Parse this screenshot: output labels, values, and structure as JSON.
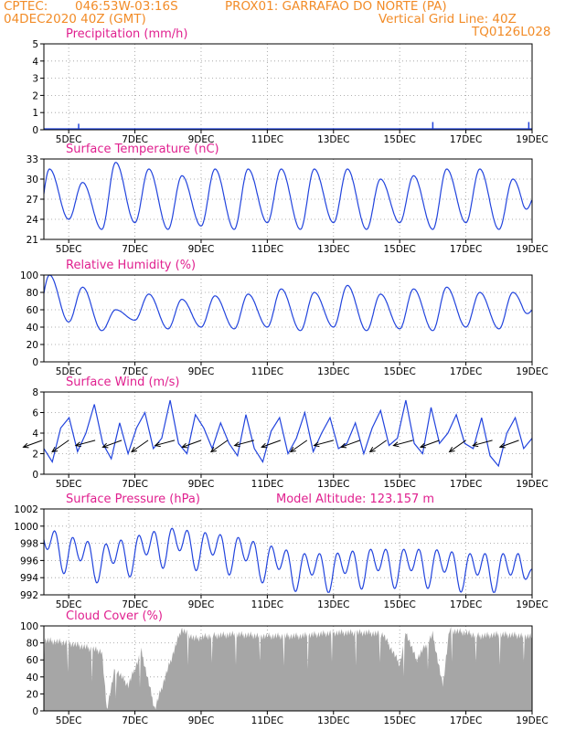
{
  "header": {
    "line1_left": "CPTEC:",
    "line1_coords": "046:53W-03:16S",
    "line1_site": "PROX01: GARRAFAO DO NORTE (PA)",
    "line2_date": "04DEC2020 40Z (GMT)",
    "line2_grid": "Vertical Grid Line: 40Z",
    "line3_code": "TQ0126L028"
  },
  "colors": {
    "series": "#2244dd",
    "title": "#e0208f",
    "header": "#f28c28",
    "cloud": "#a6a6a6"
  },
  "x_ticks": [
    "5DEC",
    "7DEC",
    "9DEC",
    "11DEC",
    "13DEC",
    "15DEC",
    "17DEC",
    "19DEC"
  ],
  "chart_data": [
    {
      "type": "bar",
      "title": "Precipitation (mm/h)",
      "ylim": [
        0,
        5
      ],
      "yticks": [
        0,
        1,
        2,
        3,
        4,
        5
      ],
      "x_unit": "day offset from 04DEC2020 00Z",
      "events": [
        [
          1.3,
          0.35
        ],
        [
          3.1,
          0.05
        ],
        [
          7.2,
          0.05
        ],
        [
          10.8,
          0.05
        ],
        [
          12.0,
          0.45
        ],
        [
          14.9,
          0.45
        ]
      ],
      "grid": true
    },
    {
      "type": "line",
      "title": "Surface Temperature (nC)",
      "ylim": [
        21,
        33
      ],
      "yticks": [
        21,
        24,
        27,
        30,
        33
      ],
      "cycle": {
        "max": [
          31.5,
          29.5,
          32.5,
          31.5,
          30.5,
          31.5,
          31.5,
          31.5,
          31.5,
          31.5,
          30.0,
          30.5,
          31.5,
          31.5,
          30.0,
          29.0,
          31.0
        ],
        "min": [
          21.0,
          24.0,
          22.5,
          23.5,
          22.5,
          23.0,
          22.5,
          23.5,
          22.5,
          23.5,
          22.5,
          23.5,
          22.5,
          23.5,
          22.5,
          23.0,
          23.5
        ]
      },
      "end_value": 27.0,
      "grid": true
    },
    {
      "type": "line",
      "title": "Relative Humidity (%)",
      "ylim": [
        0,
        100
      ],
      "yticks": [
        0,
        20,
        40,
        60,
        80,
        100
      ],
      "cycle": {
        "max": [
          100,
          86,
          60,
          78,
          72,
          76,
          78,
          84,
          80,
          88,
          78,
          84,
          86,
          80,
          80,
          74,
          86
        ],
        "min": [
          40,
          46,
          36,
          48,
          38,
          40,
          38,
          40,
          36,
          40,
          36,
          38,
          36,
          40,
          38,
          46,
          40
        ]
      },
      "end_value": 60,
      "grid": true
    },
    {
      "type": "line",
      "title": "Surface Wind (m/s)",
      "ylim": [
        0,
        8
      ],
      "yticks": [
        0,
        2,
        4,
        6,
        8
      ],
      "values": [
        2.5,
        1.2,
        4.5,
        5.5,
        2.2,
        4.0,
        6.8,
        3.0,
        1.5,
        5.0,
        2.0,
        4.5,
        6.0,
        2.5,
        3.5,
        7.2,
        3.0,
        2.0,
        5.8,
        4.5,
        2.5,
        5.0,
        3.0,
        1.8,
        5.8,
        2.5,
        1.2,
        4.2,
        5.5,
        2.0,
        3.5,
        6.0,
        2.2,
        4.0,
        5.5,
        2.5,
        3.0,
        5.0,
        2.0,
        4.5,
        6.2,
        2.8,
        3.5,
        7.2,
        3.0,
        2.0,
        6.5,
        3.0,
        4.0,
        5.8,
        3.0,
        2.5,
        5.5,
        1.8,
        0.8,
        4.0,
        5.5,
        2.5,
        3.5
      ],
      "arrow_days": [
        0.2,
        1.0,
        1.8,
        2.6,
        3.4,
        4.2,
        5.0,
        5.8,
        6.6,
        7.4,
        8.2,
        9.0,
        9.8,
        10.6,
        11.4,
        12.2,
        13.0,
        13.8,
        14.6
      ],
      "grid": true
    },
    {
      "type": "line",
      "title": "Surface Pressure (hPa)",
      "annotation": "Model Altitude: 123.157  m",
      "ylim": [
        992,
        1002
      ],
      "yticks": [
        992,
        994,
        996,
        998,
        1000,
        1002
      ],
      "mean": [
        998.5,
        997.0,
        996.0,
        997.0,
        998.0,
        997.5,
        997.0,
        996.0,
        995.0,
        995.0,
        995.5,
        995.5,
        995.5,
        995.0,
        995.0,
        995.0,
        995.0
      ],
      "amp": 2.3,
      "grid": true
    },
    {
      "type": "bar",
      "title": "Cloud Cover (%)",
      "ylim": [
        0,
        100
      ],
      "yticks": [
        0,
        20,
        40,
        60,
        80,
        100
      ],
      "level_days": [
        0,
        0.5,
        1.0,
        1.5,
        2.0,
        2.15,
        2.4,
        2.8,
        3.2,
        3.6,
        4.0,
        4.4,
        4.8,
        5.2,
        6.0,
        7.0,
        8.0,
        9.0,
        10.0,
        10.5,
        11.0,
        11.2,
        11.5,
        12.0,
        12.3,
        12.5,
        13.0,
        13.4,
        14.0,
        15.0
      ],
      "level_values": [
        85,
        82,
        80,
        75,
        70,
        2,
        50,
        30,
        70,
        2,
        50,
        96,
        85,
        88,
        90,
        88,
        88,
        92,
        92,
        90,
        55,
        92,
        60,
        90,
        30,
        95,
        92,
        88,
        90,
        88
      ],
      "grid": true
    }
  ]
}
